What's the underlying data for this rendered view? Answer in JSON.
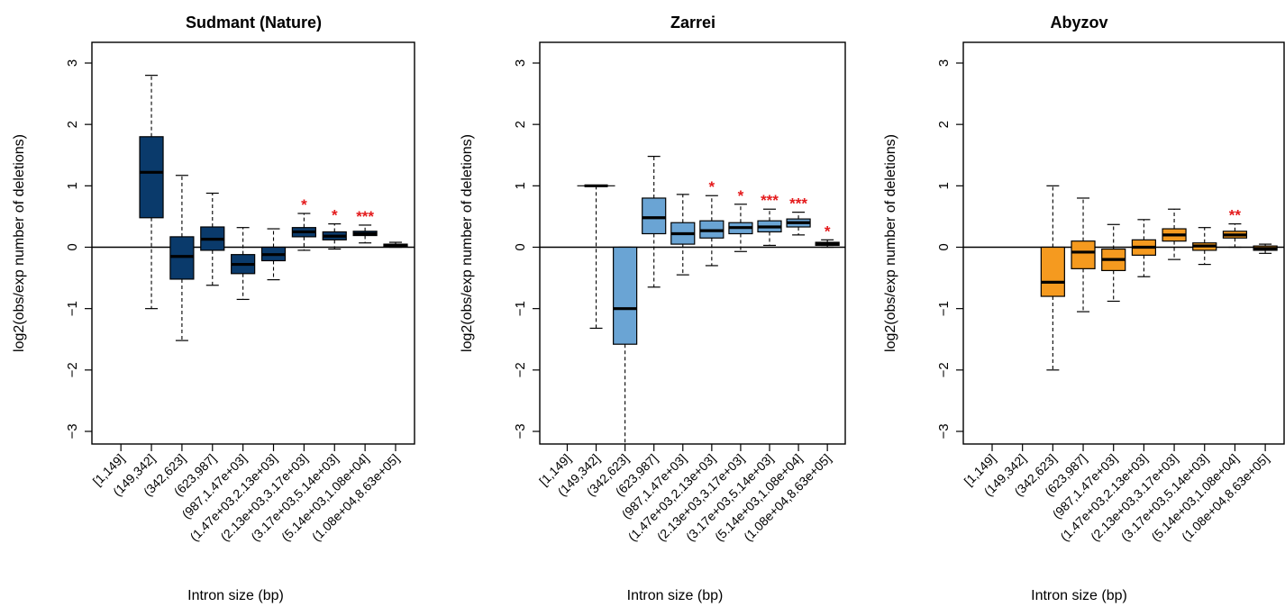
{
  "colors": {
    "annotation": "#e41a1c",
    "axis": "#000000",
    "median": "#000000"
  },
  "chart_data": [
    {
      "type": "box",
      "title": "Sudmant (Nature)",
      "xlabel": "Intron size (bp)",
      "ylabel": "log2(obs/exp number of deletions)",
      "ylim": [
        -3,
        3
      ],
      "yticks": [
        -3,
        -2,
        -1,
        0,
        1,
        2,
        3
      ],
      "reference_line": 0,
      "box_color": "#0a3a6b",
      "categories": [
        "[1,149]",
        "(149,342]",
        "(342,623]",
        "(623,987]",
        "(987,1.47e+03]",
        "(1.47e+03,2.13e+03]",
        "(2.13e+03,3.17e+03]",
        "(3.17e+03,5.14e+03]",
        "(5.14e+03,1.08e+04]",
        "(1.08e+04,8.63e+05]"
      ],
      "boxes": [
        null,
        {
          "min": -1.0,
          "q1": 0.48,
          "median": 1.22,
          "q3": 1.8,
          "max": 2.8
        },
        {
          "min": -1.52,
          "q1": -0.52,
          "median": -0.15,
          "q3": 0.17,
          "max": 1.17
        },
        {
          "min": -0.62,
          "q1": -0.05,
          "median": 0.13,
          "q3": 0.33,
          "max": 0.88
        },
        {
          "min": -0.85,
          "q1": -0.43,
          "median": -0.28,
          "q3": -0.12,
          "max": 0.32
        },
        {
          "min": -0.53,
          "q1": -0.22,
          "median": -0.12,
          "q3": 0.0,
          "max": 0.3
        },
        {
          "min": -0.05,
          "q1": 0.17,
          "median": 0.25,
          "q3": 0.32,
          "max": 0.55
        },
        {
          "min": -0.03,
          "q1": 0.12,
          "median": 0.18,
          "q3": 0.25,
          "max": 0.38
        },
        {
          "min": 0.07,
          "q1": 0.19,
          "median": 0.22,
          "q3": 0.26,
          "max": 0.36
        },
        {
          "min": 0.0,
          "q1": 0.01,
          "median": 0.03,
          "q3": 0.05,
          "max": 0.08
        }
      ],
      "annotations": [
        "",
        "",
        "",
        "",
        "",
        "",
        "*",
        "*",
        "***",
        ""
      ]
    },
    {
      "type": "box",
      "title": "Zarrei",
      "xlabel": "Intron size (bp)",
      "ylabel": "log2(obs/exp number of deletions)",
      "ylim": [
        -3,
        3
      ],
      "yticks": [
        -3,
        -2,
        -1,
        0,
        1,
        2,
        3
      ],
      "reference_line": 0,
      "box_color": "#6aa4d4",
      "categories": [
        "[1,149]",
        "(149,342]",
        "(342,623]",
        "(623,987]",
        "(987,1.47e+03]",
        "(1.47e+03,2.13e+03]",
        "(2.13e+03,3.17e+03]",
        "(3.17e+03,5.14e+03]",
        "(5.14e+03,1.08e+04]",
        "(1.08e+04,8.63e+05]"
      ],
      "boxes": [
        null,
        {
          "min": -1.32,
          "q1": 1.0,
          "median": 1.0,
          "q3": 1.0,
          "max": 1.0
        },
        {
          "min": -3.2,
          "q1": -1.58,
          "median": -1.0,
          "q3": 0.0,
          "max": 0.0
        },
        {
          "min": -0.65,
          "q1": 0.22,
          "median": 0.48,
          "q3": 0.8,
          "max": 1.48
        },
        {
          "min": -0.45,
          "q1": 0.05,
          "median": 0.22,
          "q3": 0.4,
          "max": 0.86
        },
        {
          "min": -0.3,
          "q1": 0.15,
          "median": 0.27,
          "q3": 0.43,
          "max": 0.84
        },
        {
          "min": -0.07,
          "q1": 0.22,
          "median": 0.32,
          "q3": 0.4,
          "max": 0.7
        },
        {
          "min": 0.03,
          "q1": 0.25,
          "median": 0.33,
          "q3": 0.43,
          "max": 0.62
        },
        {
          "min": 0.2,
          "q1": 0.33,
          "median": 0.4,
          "q3": 0.46,
          "max": 0.57
        },
        {
          "min": 0.0,
          "q1": 0.03,
          "median": 0.05,
          "q3": 0.08,
          "max": 0.12
        }
      ],
      "annotations": [
        "",
        "",
        "",
        "",
        "",
        "*",
        "*",
        "***",
        "***",
        "*"
      ]
    },
    {
      "type": "box",
      "title": "Abyzov",
      "xlabel": "Intron size (bp)",
      "ylabel": "log2(obs/exp number of deletions)",
      "ylim": [
        -3,
        3
      ],
      "yticks": [
        -3,
        -2,
        -1,
        0,
        1,
        2,
        3
      ],
      "reference_line": 0,
      "box_color": "#f59a1f",
      "categories": [
        "[1,149]",
        "(149,342]",
        "(342,623]",
        "(623,987]",
        "(987,1.47e+03]",
        "(1.47e+03,2.13e+03]",
        "(2.13e+03,3.17e+03]",
        "(3.17e+03,5.14e+03]",
        "(5.14e+03,1.08e+04]",
        "(1.08e+04,8.63e+05]"
      ],
      "boxes": [
        null,
        null,
        {
          "min": -2.0,
          "q1": -0.8,
          "median": -0.57,
          "q3": 0.0,
          "max": 1.0
        },
        {
          "min": -1.05,
          "q1": -0.35,
          "median": -0.08,
          "q3": 0.1,
          "max": 0.8
        },
        {
          "min": -0.88,
          "q1": -0.38,
          "median": -0.2,
          "q3": -0.03,
          "max": 0.37
        },
        {
          "min": -0.48,
          "q1": -0.13,
          "median": 0.0,
          "q3": 0.12,
          "max": 0.45
        },
        {
          "min": -0.2,
          "q1": 0.1,
          "median": 0.2,
          "q3": 0.3,
          "max": 0.62
        },
        {
          "min": -0.28,
          "q1": -0.05,
          "median": 0.02,
          "q3": 0.07,
          "max": 0.32
        },
        {
          "min": 0.0,
          "q1": 0.15,
          "median": 0.2,
          "q3": 0.26,
          "max": 0.38
        },
        {
          "min": -0.1,
          "q1": -0.05,
          "median": -0.02,
          "q3": 0.02,
          "max": 0.05
        }
      ],
      "annotations": [
        "",
        "",
        "",
        "",
        "",
        "",
        "",
        "",
        "**",
        ""
      ]
    }
  ]
}
